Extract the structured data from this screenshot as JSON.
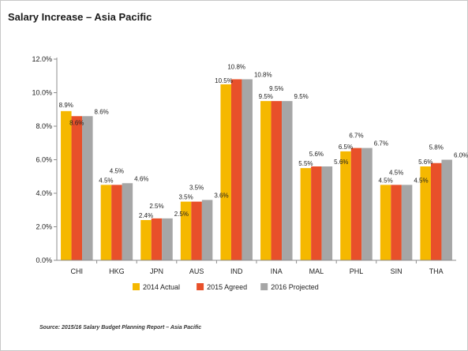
{
  "title": "Salary Increase – Asia Pacific",
  "source": "Source: 2015/16 Salary Budget Planning Report – Asia Pacific",
  "chart_data": {
    "type": "bar",
    "title": "Salary Increase – Asia Pacific",
    "categories": [
      "CHI",
      "HKG",
      "JPN",
      "AUS",
      "IND",
      "INA",
      "MAL",
      "PHL",
      "SIN",
      "THA"
    ],
    "series": [
      {
        "name": "2014 Actual",
        "color": "#f5b800",
        "values": [
          8.9,
          4.5,
          2.4,
          3.5,
          10.5,
          9.5,
          5.5,
          6.5,
          4.5,
          5.6
        ],
        "labels": [
          "8.9%",
          "4.5%",
          "2.4%",
          "3.5%",
          "10.5%",
          "9.5%",
          "5.5%",
          "6.5%",
          "4.5%",
          "5.6%"
        ]
      },
      {
        "name": "2015 Agreed",
        "color": "#e8502a",
        "values": [
          8.6,
          4.5,
          2.5,
          3.5,
          10.8,
          9.5,
          5.6,
          6.7,
          4.5,
          5.8
        ],
        "labels": [
          "8.6%",
          "4.5%",
          "2.5%",
          "3.5%",
          "10.8%",
          "9.5%",
          "5.6%",
          "6.7%",
          "4.5%",
          "5.8%"
        ]
      },
      {
        "name": "2016 Projected",
        "color": "#a6a6a6",
        "values": [
          8.6,
          4.6,
          2.5,
          3.6,
          10.8,
          9.5,
          5.6,
          6.7,
          4.5,
          6.0
        ],
        "labels": [
          "8.6%",
          "4.6%",
          "2.5%",
          "3.6%",
          "10.8%",
          "9.5%",
          "5.6%",
          "6.7%",
          "4.5%",
          "6.0%"
        ]
      }
    ],
    "yticks": [
      "0.0%",
      "2.0%",
      "4.0%",
      "6.0%",
      "8.0%",
      "10.0%",
      "12.0%"
    ],
    "ylim": [
      0,
      12
    ],
    "grid": false,
    "legend_position": "bottom"
  }
}
